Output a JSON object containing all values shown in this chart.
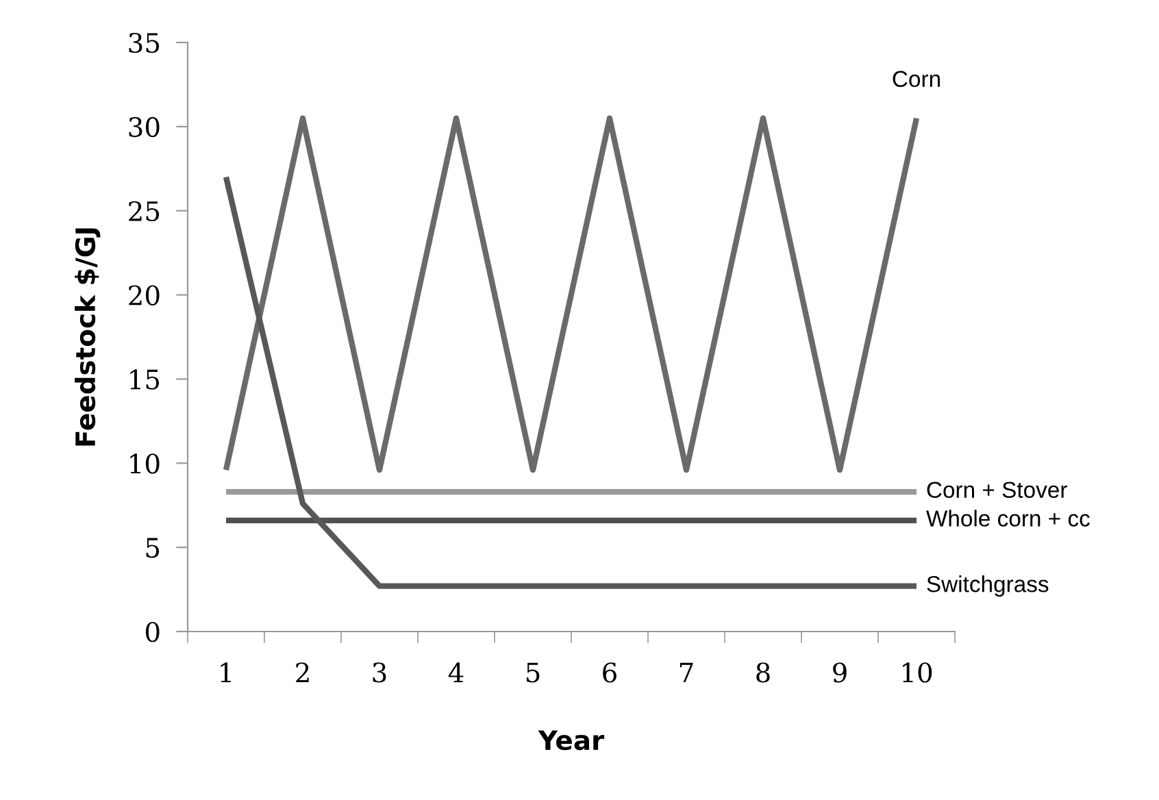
{
  "chart_data": {
    "type": "line",
    "xlabel": "Year",
    "ylabel": "Feedstock $/GJ",
    "categories": [
      "1",
      "2",
      "3",
      "4",
      "5",
      "6",
      "7",
      "8",
      "9",
      "10"
    ],
    "series": [
      {
        "name": "Corn",
        "color": "#6a6a6a",
        "values": [
          9.6,
          30.5,
          9.6,
          30.5,
          9.6,
          30.5,
          9.6,
          30.5,
          9.6,
          30.5
        ]
      },
      {
        "name": "Corn + Stover",
        "color": "#9a9a9a",
        "values": [
          8.3,
          8.3,
          8.3,
          8.3,
          8.3,
          8.3,
          8.3,
          8.3,
          8.3,
          8.3
        ]
      },
      {
        "name": "Whole corn + cc",
        "color": "#505050",
        "values": [
          6.6,
          6.6,
          6.6,
          6.6,
          6.6,
          6.6,
          6.6,
          6.6,
          6.6,
          6.6
        ]
      },
      {
        "name": "Switchgrass",
        "color": "#585858",
        "values": [
          27.0,
          7.6,
          2.7,
          2.7,
          2.7,
          2.7,
          2.7,
          2.7,
          2.7,
          2.7
        ]
      }
    ],
    "ylim": [
      0,
      35
    ],
    "yticks": [
      0,
      5,
      10,
      15,
      20,
      25,
      30,
      35
    ],
    "grid": false,
    "legend": false,
    "marker": "none",
    "line_style": "solid"
  }
}
